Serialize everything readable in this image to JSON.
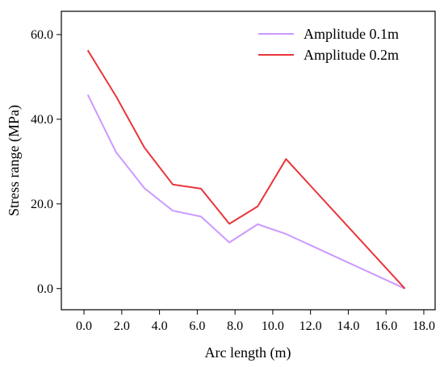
{
  "chart_data": {
    "type": "line",
    "xlabel": "Arc length (m)",
    "ylabel": "Stress range (MPa)",
    "xlim": [
      -1.2,
      18.6
    ],
    "ylim": [
      -5.0,
      65.5
    ],
    "x_ticks": [
      0.0,
      2.0,
      4.0,
      6.0,
      8.0,
      10.0,
      12.0,
      14.0,
      16.0,
      18.0
    ],
    "x_tick_labels": [
      "0.0",
      "2.0",
      "4.0",
      "6.0",
      "8.0",
      "10.0",
      "12.0",
      "14.0",
      "16.0",
      "18.0"
    ],
    "y_ticks": [
      0.0,
      20.0,
      40.0,
      60.0
    ],
    "y_tick_labels": [
      "0.0",
      "20.0",
      "40.0",
      "60.0"
    ],
    "grid": false,
    "legend_position": "top-right",
    "series": [
      {
        "name": "Amplitude 0.1m",
        "color": "#cc99ff",
        "x": [
          0.2,
          1.7,
          3.2,
          4.7,
          6.2,
          7.7,
          9.2,
          10.7,
          17.0
        ],
        "y": [
          45.8,
          32.2,
          23.7,
          18.4,
          17.0,
          10.9,
          15.2,
          12.9,
          0.0
        ]
      },
      {
        "name": "Amplitude 0.2m",
        "color": "#e8363a",
        "x": [
          0.2,
          1.7,
          3.2,
          4.7,
          6.2,
          7.7,
          9.2,
          10.7,
          17.0
        ],
        "y": [
          56.3,
          45.4,
          33.3,
          24.6,
          23.6,
          15.3,
          19.4,
          30.6,
          0.0
        ]
      }
    ]
  }
}
